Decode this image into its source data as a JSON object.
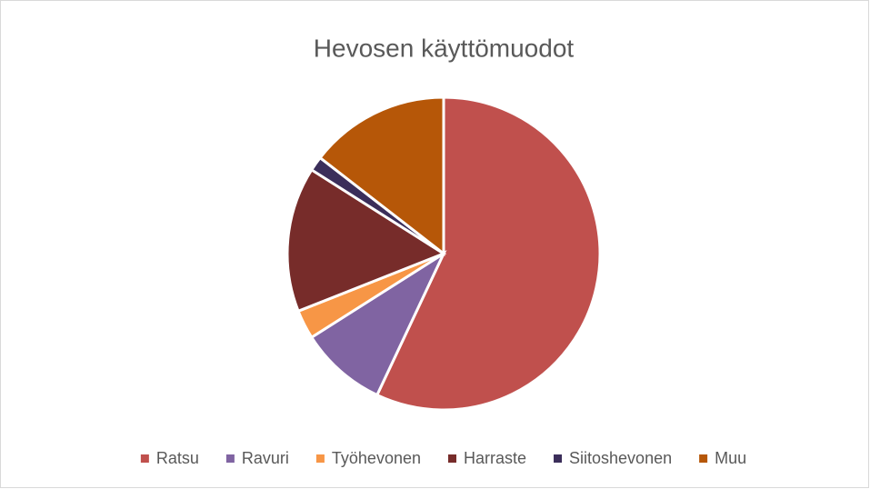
{
  "chart_data": {
    "type": "pie",
    "title": "Hevosen käyttömuodot",
    "categories": [
      "Ratsu",
      "Ravuri",
      "Työhevonen",
      "Harraste",
      "Siitoshevonen",
      "Muu"
    ],
    "values": [
      57,
      9,
      3,
      15,
      1.5,
      14.5
    ],
    "colors": [
      "#c0504d",
      "#8064a2",
      "#f79646",
      "#772c2a",
      "#3b2e5a",
      "#b65708"
    ],
    "legend": "bottom"
  }
}
